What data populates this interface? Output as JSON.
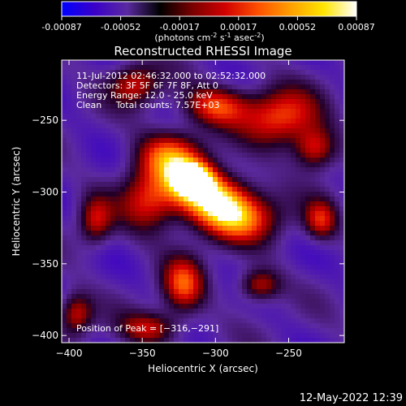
{
  "colorbar": {
    "ticks": [
      "-0.00087",
      "-0.00052",
      "-0.00017",
      "0.00017",
      "0.00052",
      "0.00087"
    ],
    "unit_pre": "(photons cm",
    "unit_exp1": "-2",
    "unit_mid1": " s",
    "unit_exp2": "-1",
    "unit_mid2": " asec",
    "unit_exp3": "-2",
    "unit_post": ")",
    "stops": [
      "#0000ff",
      "#3a00c8",
      "#5a2aa0",
      "#000000",
      "#7a0000",
      "#d20000",
      "#ff5000",
      "#ffa000",
      "#ffe600",
      "#ffffff"
    ]
  },
  "chart_data": {
    "type": "heatmap",
    "title": "Reconstructed RHESSI Image",
    "xlabel": "Heliocentric X (arcsec)",
    "ylabel": "Heliocentric Y (arcsec)",
    "xlim": [
      -405,
      -212
    ],
    "ylim": [
      -405,
      -208
    ],
    "x_ticks": [
      -400,
      -350,
      -300,
      -250
    ],
    "y_ticks": [
      -400,
      -350,
      -300,
      -250
    ],
    "x_tick_labels": [
      "−400",
      "−350",
      "−300",
      "−250"
    ],
    "y_tick_labels": [
      "−400",
      "−350",
      "−300",
      "−250"
    ],
    "peak": [
      -316,
      -291
    ],
    "annotations": [
      "11-Jul-2012 02:46:32.000 to 02:52:32.000",
      "Detectors: 3F 5F 6F 7F 8F, Att 0",
      "Energy Range: 12.0 - 25.0 keV",
      "Clean     Total counts: 7.57E+03"
    ],
    "peak_label": "Position of Peak = [−316,−291]",
    "features": [
      {
        "x": -316,
        "y": -291,
        "sx": 10,
        "sy": 8,
        "amp": 1.0
      },
      {
        "x": -303,
        "y": -303,
        "sx": 18,
        "sy": 12,
        "amp": 0.75
      },
      {
        "x": -285,
        "y": -318,
        "sx": 20,
        "sy": 12,
        "amp": 0.6
      },
      {
        "x": -330,
        "y": -275,
        "sx": 16,
        "sy": 12,
        "amp": 0.55
      },
      {
        "x": -255,
        "y": -248,
        "sx": 18,
        "sy": 14,
        "amp": 0.5
      },
      {
        "x": -300,
        "y": -240,
        "sx": 16,
        "sy": 10,
        "amp": 0.45
      },
      {
        "x": -345,
        "y": -305,
        "sx": 14,
        "sy": 16,
        "amp": 0.4
      },
      {
        "x": -322,
        "y": -365,
        "sx": 10,
        "sy": 14,
        "amp": 0.45
      },
      {
        "x": -355,
        "y": -225,
        "sx": 12,
        "sy": 10,
        "amp": 0.35
      },
      {
        "x": -232,
        "y": -270,
        "sx": 10,
        "sy": 10,
        "amp": 0.4
      },
      {
        "x": -382,
        "y": -320,
        "sx": 8,
        "sy": 12,
        "amp": 0.3
      },
      {
        "x": -395,
        "y": -385,
        "sx": 8,
        "sy": 10,
        "amp": 0.35
      },
      {
        "x": -270,
        "y": -365,
        "sx": 10,
        "sy": 8,
        "amp": 0.35
      },
      {
        "x": -228,
        "y": -320,
        "sx": 8,
        "sy": 10,
        "amp": 0.35
      },
      {
        "x": -345,
        "y": -395,
        "sx": 14,
        "sy": 8,
        "amp": 0.3
      }
    ]
  },
  "footer_timestamp": "12-May-2022 12:39"
}
